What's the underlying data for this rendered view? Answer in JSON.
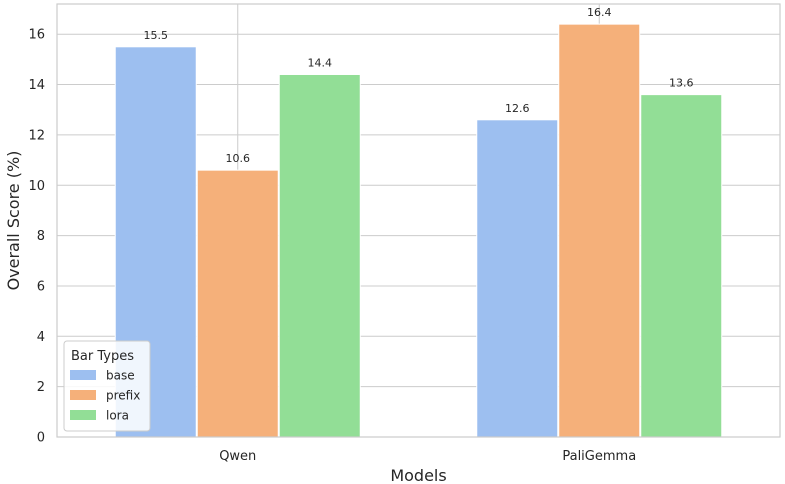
{
  "chart_data": {
    "type": "bar",
    "categories": [
      "Qwen",
      "PaliGemma"
    ],
    "series": [
      {
        "name": "base",
        "values": [
          15.5,
          12.6
        ],
        "color": "#9dbff0"
      },
      {
        "name": "prefix",
        "values": [
          10.6,
          16.4
        ],
        "color": "#f5b07a"
      },
      {
        "name": "lora",
        "values": [
          14.4,
          13.6
        ],
        "color": "#92de96"
      }
    ],
    "title": "",
    "xlabel": "Models",
    "ylabel": "Overall Score (%)",
    "ylim": [
      0,
      17.2
    ],
    "yticks": [
      0,
      2,
      4,
      6,
      8,
      10,
      12,
      14,
      16
    ],
    "grid": true,
    "legend": {
      "title": "Bar Types",
      "placement": "lower-left"
    },
    "colors": {
      "grid": "#cccccc",
      "frame": "#cccccc",
      "text": "#262626"
    }
  }
}
